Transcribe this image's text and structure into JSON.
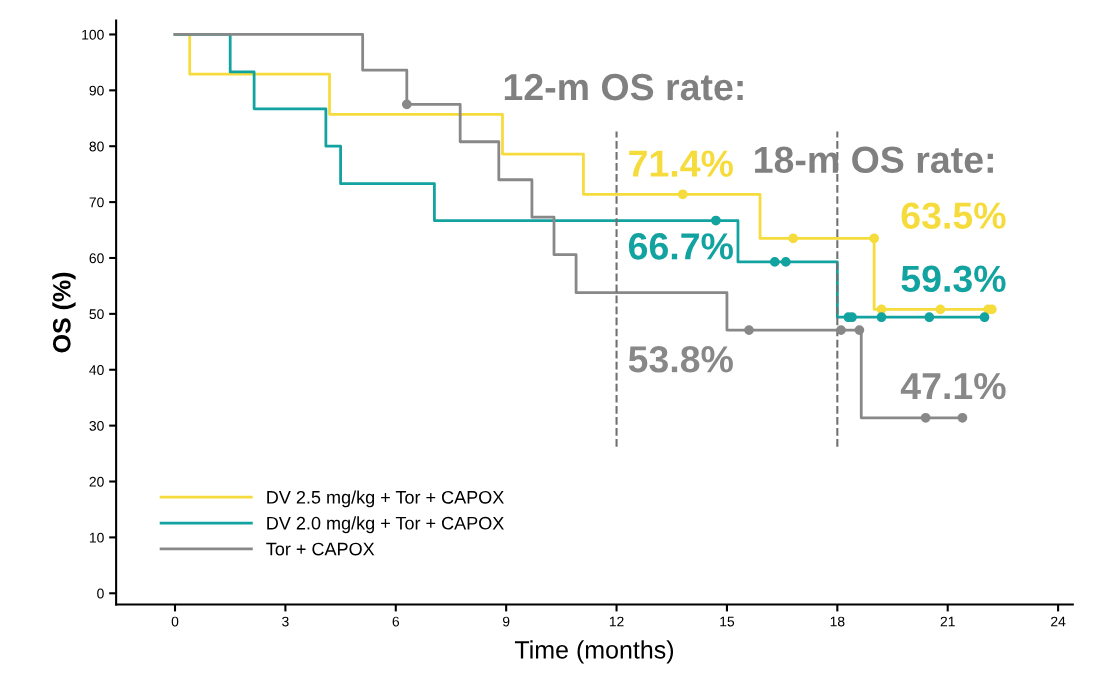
{
  "chart_data": {
    "type": "step",
    "xlabel": "Time (months)",
    "ylabel": "OS (%)",
    "xlim": [
      -1.6,
      24.4
    ],
    "xticks": [
      0,
      3,
      6,
      9,
      12,
      15,
      18,
      21,
      24
    ],
    "ylim": [
      -2,
      102.5
    ],
    "yticks": [
      0,
      10,
      20,
      30,
      40,
      50,
      60,
      70,
      80,
      90,
      100
    ],
    "grid": false,
    "legend": "bottom left",
    "line_style": "solid",
    "series": [
      {
        "name": "DV 2.5 mg/kg + Tor + CAPOX",
        "color": "#f5dc3c",
        "x": [
          0,
          0.4,
          4.2,
          8.9,
          11.1,
          15.9,
          19.0,
          22.2
        ],
        "values": [
          100,
          92.9,
          85.7,
          78.6,
          71.4,
          63.5,
          50.8,
          50.8
        ]
      },
      {
        "name": "DV 2.0 mg/kg + Tor + CAPOX",
        "color": "#12a3a0",
        "x": [
          0,
          1.5,
          2.15,
          4.1,
          4.5,
          7.05,
          15.3,
          18.0,
          22.0
        ],
        "values": [
          100,
          93.3,
          86.7,
          80.0,
          73.3,
          66.7,
          59.3,
          49.4,
          49.4
        ]
      },
      {
        "name": "Tor + CAPOX",
        "color": "#888888",
        "x": [
          0,
          5.1,
          6.3,
          7.75,
          8.8,
          9.7,
          10.3,
          10.9,
          15.0,
          18.65,
          21.4
        ],
        "values": [
          100,
          93.6,
          87.5,
          80.8,
          74.0,
          67.3,
          60.6,
          53.8,
          47.1,
          31.4,
          31.4
        ]
      },
      {
        "type": "scatter",
        "marker": "circle",
        "color": "#f5dc3c",
        "x": [
          13.8,
          16.8,
          19.0,
          19.2,
          20.8,
          22.1,
          22.2
        ],
        "values": [
          71.4,
          63.5,
          63.5,
          50.8,
          50.8,
          50.8,
          50.8
        ]
      },
      {
        "type": "scatter",
        "marker": "circle",
        "color": "#12a3a0",
        "x": [
          14.7,
          16.3,
          16.6,
          18.3,
          18.4,
          19.2,
          20.5,
          22.0
        ],
        "values": [
          66.7,
          59.3,
          59.3,
          49.4,
          49.4,
          49.4,
          49.4,
          49.4
        ]
      },
      {
        "type": "scatter",
        "marker": "circle",
        "color": "#888888",
        "x": [
          6.3,
          15.6,
          18.1,
          18.6,
          20.4,
          21.4
        ],
        "values": [
          87.5,
          47.1,
          47.1,
          47.1,
          31.4,
          31.4
        ]
      }
    ],
    "ref_lines": [
      {
        "axis": "x",
        "value": 12,
        "color": "#707070",
        "line_style": "dashed"
      },
      {
        "axis": "x",
        "value": 18,
        "color": "#707070",
        "line_style": "dashed"
      }
    ],
    "annotations": [
      "12-m OS rate:",
      "18-m OS rate:",
      "71.4%",
      "66.7%",
      "53.8%",
      "63.5%",
      "59.3%",
      "47.1%"
    ]
  }
}
